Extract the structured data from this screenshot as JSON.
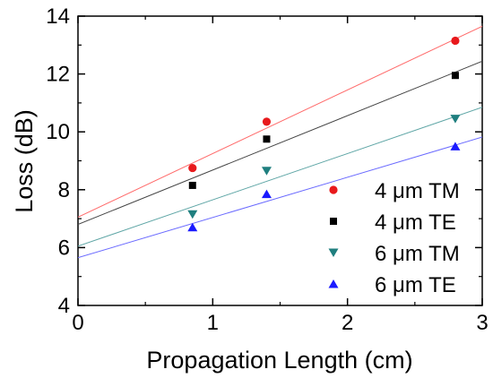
{
  "chart_data": {
    "type": "scatter",
    "title": "",
    "xlabel": "Propagation Length (cm)",
    "ylabel": "Loss (dB)",
    "xlim": [
      0,
      3
    ],
    "ylim": [
      4,
      14
    ],
    "xticks": [
      0,
      1,
      2,
      3
    ],
    "yticks": [
      4,
      6,
      8,
      10,
      12,
      14
    ],
    "x_tick_labels": [
      "0",
      "1",
      "2",
      "3"
    ],
    "y_tick_labels": [
      "4",
      "6",
      "8",
      "10",
      "12",
      "14"
    ],
    "grid": false,
    "legend_position": "bottom-right",
    "series": [
      {
        "name": "4 μm TM",
        "marker": "circle",
        "color": "#e8191c",
        "x": [
          0.85,
          1.4,
          2.8
        ],
        "y": [
          8.75,
          10.35,
          13.15
        ],
        "fit": {
          "intercept": 7.05,
          "slope": 2.2
        }
      },
      {
        "name": "4 μm TE",
        "marker": "square",
        "color": "#000000",
        "x": [
          0.85,
          1.4,
          2.8
        ],
        "y": [
          8.15,
          9.75,
          11.95
        ],
        "fit": {
          "intercept": 6.8,
          "slope": 1.88
        }
      },
      {
        "name": "6 μm TM",
        "marker": "triangle-down",
        "color": "#1f7f7f",
        "x": [
          0.85,
          1.4,
          2.8
        ],
        "y": [
          7.15,
          8.65,
          10.45
        ],
        "fit": {
          "intercept": 6.05,
          "slope": 1.6
        }
      },
      {
        "name": "6 μm TE",
        "marker": "triangle-up",
        "color": "#1a1aff",
        "x": [
          0.85,
          1.4,
          2.8
        ],
        "y": [
          6.7,
          7.85,
          9.5
        ],
        "fit": {
          "intercept": 5.65,
          "slope": 1.39
        }
      }
    ],
    "fit_line_colors": [
      "#ff6b6b",
      "#444444",
      "#5fa6a6",
      "#6a6aff"
    ]
  }
}
